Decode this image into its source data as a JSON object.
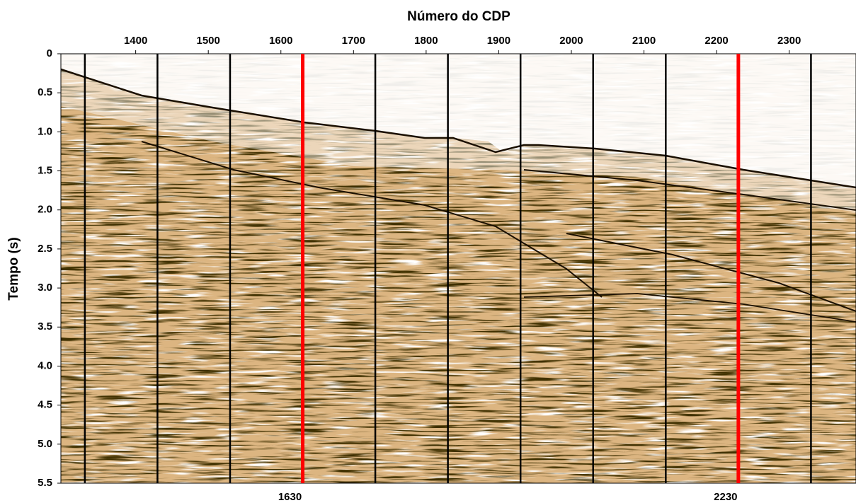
{
  "chart_data": {
    "type": "seismic-section",
    "title": "Número do CDP",
    "y_label": "Tempo (s)",
    "xlim": [
      1297,
      2392
    ],
    "xticks": [
      1400,
      1500,
      1600,
      1700,
      1800,
      1900,
      2000,
      2100,
      2200,
      2300
    ],
    "ylim": [
      0,
      5.5
    ],
    "yticks": [
      0,
      0.5,
      {
        "value": 1,
        "label": "1.0"
      },
      1.5,
      {
        "value": 2,
        "label": "2.0"
      },
      2.5,
      {
        "value": 3,
        "label": "3.0"
      },
      3.5,
      {
        "value": 4,
        "label": "4.0"
      },
      4.5,
      {
        "value": 5,
        "label": "5.0"
      },
      5.5
    ],
    "y_inverted": true,
    "lines": [
      {
        "value": 1330,
        "color": "#000000"
      },
      {
        "value": 1430,
        "color": "#000000"
      },
      {
        "value": 1530,
        "color": "#000000"
      },
      {
        "value": 1630,
        "color": "#ff0000",
        "show_label": true
      },
      {
        "value": 1730,
        "color": "#000000"
      },
      {
        "value": 1830,
        "color": "#000000"
      },
      {
        "value": 1930,
        "color": "#000000"
      },
      {
        "value": 2030,
        "color": "#000000"
      },
      {
        "value": 2130,
        "color": "#000000"
      },
      {
        "value": 2230,
        "color": "#ff0000",
        "show_label": true
      },
      {
        "value": 2330,
        "color": "#000000"
      }
    ]
  }
}
